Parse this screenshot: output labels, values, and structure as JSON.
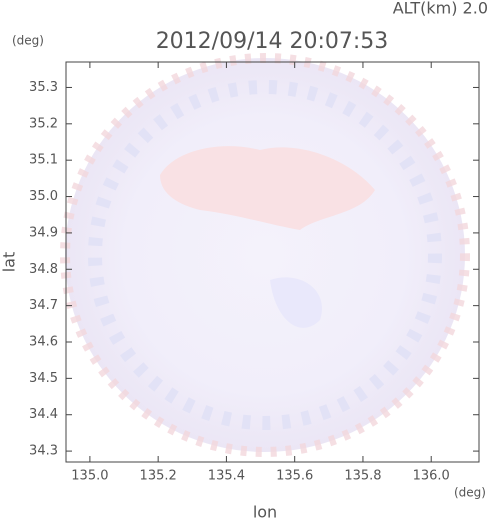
{
  "chart_data": {
    "type": "radar",
    "title": "2012/09/14 20:07:53",
    "altitude_label": "ALT(km) 2.0",
    "x_label": "lon",
    "y_label": "lat",
    "x_unit": "(deg)",
    "y_unit": "(deg)",
    "xlim": [
      134.93,
      136.14
    ],
    "ylim": [
      34.27,
      35.37
    ],
    "xticks": [
      {
        "value": 135.0,
        "label": "135.0"
      },
      135.2,
      135.4,
      135.6,
      135.8,
      {
        "value": 136.0,
        "label": "136.0"
      }
    ],
    "yticks": [
      34.3,
      34.4,
      34.5,
      34.6,
      34.7,
      34.8,
      34.9,
      {
        "value": 35.0,
        "label": "35.0"
      },
      35.1,
      35.2,
      35.3
    ]
  }
}
